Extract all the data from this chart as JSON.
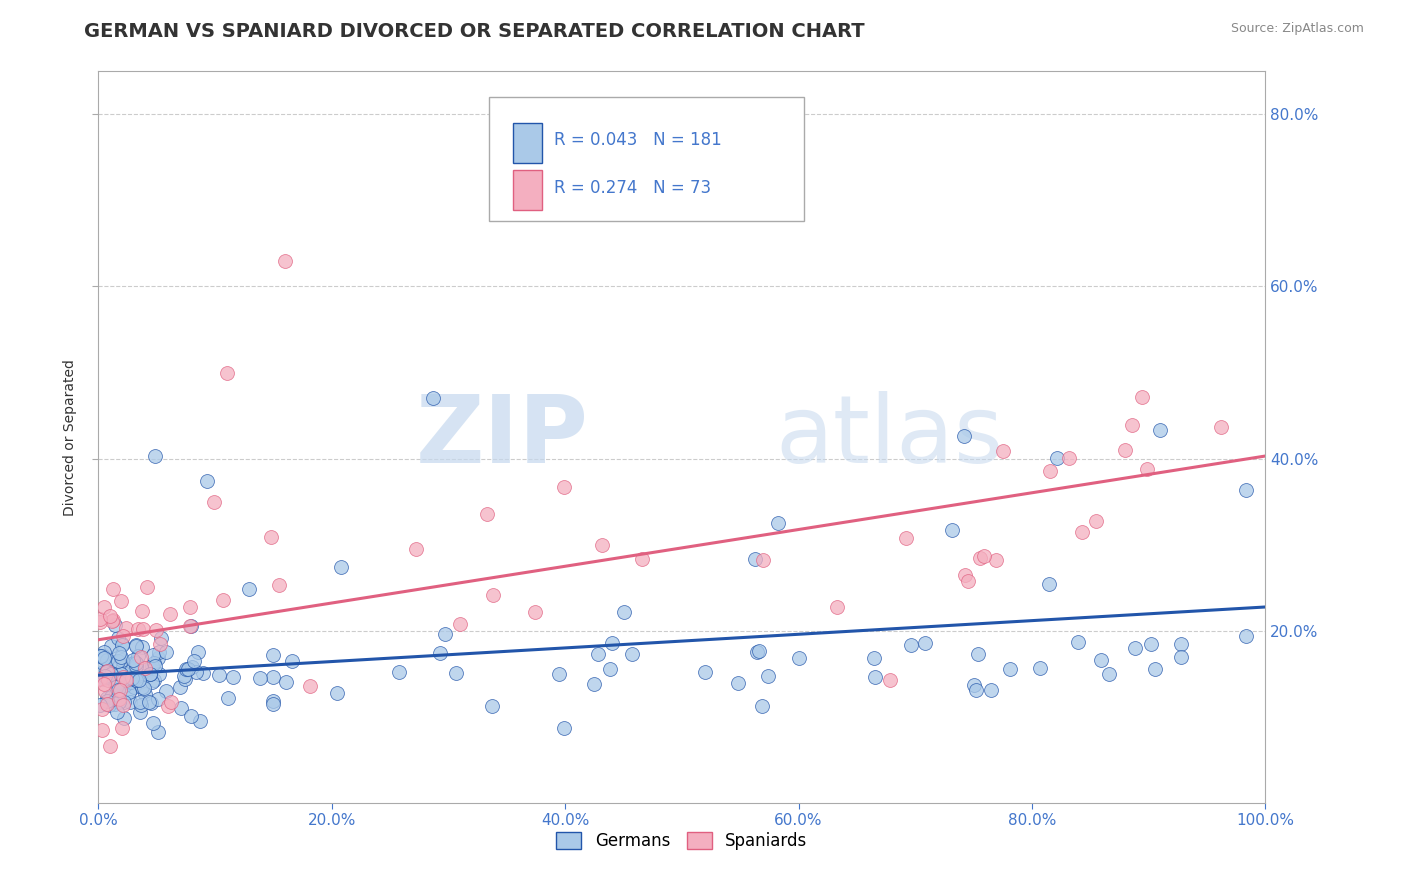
{
  "title": "GERMAN VS SPANIARD DIVORCED OR SEPARATED CORRELATION CHART",
  "source_text": "Source: ZipAtlas.com",
  "ylabel": "Divorced or Separated",
  "xlim": [
    0.0,
    1.0
  ],
  "ylim": [
    0.0,
    0.85
  ],
  "xticks": [
    0.0,
    0.2,
    0.4,
    0.6,
    0.8,
    1.0
  ],
  "yticks": [
    0.2,
    0.4,
    0.6,
    0.8
  ],
  "xtick_labels": [
    "0.0%",
    "20.0%",
    "40.0%",
    "60.0%",
    "80.0%",
    "100.0%"
  ],
  "ytick_labels": [
    "20.0%",
    "40.0%",
    "60.0%",
    "80.0%"
  ],
  "german_color": "#aac9e8",
  "spaniard_color": "#f4afc0",
  "german_line_color": "#2255aa",
  "spaniard_line_color": "#e06080",
  "legend_r_german": "R = 0.043",
  "legend_n_german": "N = 181",
  "legend_r_spaniard": "R = 0.274",
  "legend_n_spaniard": "N = 73",
  "watermark_zip": "ZIP",
  "watermark_atlas": "atlas",
  "title_fontsize": 14,
  "axis_label_fontsize": 10,
  "tick_fontsize": 11,
  "background_color": "#ffffff",
  "grid_color": "#cccccc",
  "ytick_color": "#4477cc",
  "xtick_color": "#4477cc"
}
